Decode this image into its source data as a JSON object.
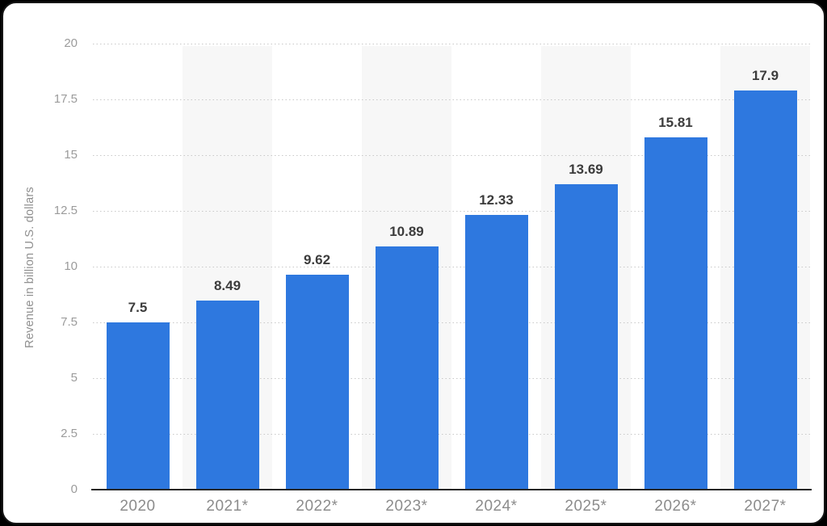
{
  "chart_data": {
    "type": "bar",
    "title": "",
    "xlabel": "",
    "ylabel": "Revenue in billion U.S. dollars",
    "categories": [
      "2020",
      "2021*",
      "2022*",
      "2023*",
      "2024*",
      "2025*",
      "2026*",
      "2027*"
    ],
    "values": [
      7.5,
      8.49,
      9.62,
      10.89,
      12.33,
      13.69,
      15.81,
      17.9
    ],
    "value_labels": [
      "7.5",
      "8.49",
      "9.62",
      "10.89",
      "12.33",
      "13.69",
      "15.81",
      "17.9"
    ],
    "ylim": [
      0,
      20
    ],
    "yticks": [
      0,
      2.5,
      5,
      7.5,
      10,
      12.5,
      15,
      17.5,
      20
    ],
    "ytick_labels": [
      "0",
      "2.5",
      "5",
      "7.5",
      "10",
      "12.5",
      "15",
      "17.5",
      "20"
    ],
    "grid": "horizontal-dotted",
    "legend": "none",
    "colors": {
      "bar": "#2E78DF",
      "band": "#F7F7F7",
      "gridline": "#C8C8C8",
      "axis_line": "#262626",
      "value_label": "#3C3C3C",
      "tick_label": "#9B9B9B",
      "category_label": "#8C8C8C",
      "y_title": "#909090",
      "card_background": "#FFFFFF",
      "page_background": "#000000"
    }
  }
}
